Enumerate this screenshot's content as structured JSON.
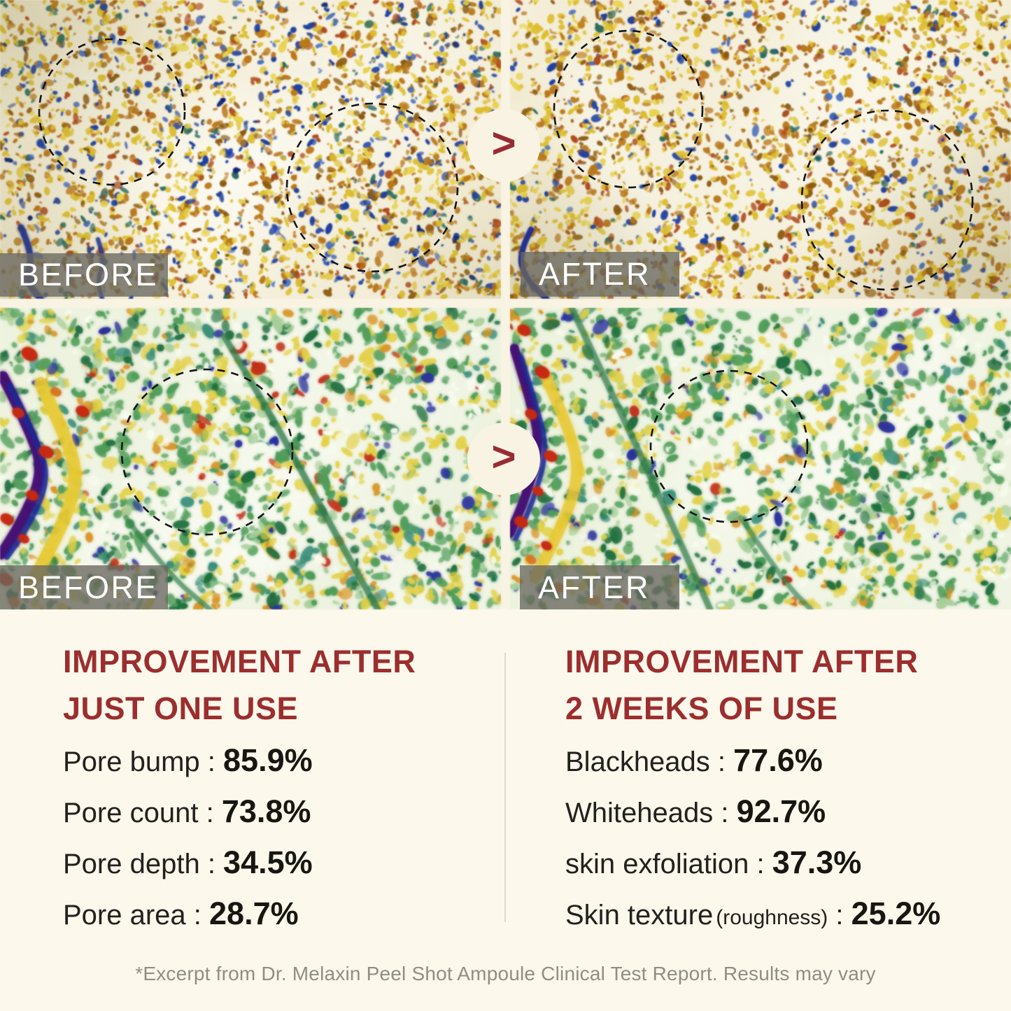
{
  "comparison": {
    "rows": [
      {
        "before_label": "BEFORE",
        "after_label": "AFTER"
      },
      {
        "before_label": "BEFORE",
        "after_label": "AFTER"
      }
    ],
    "arrow_glyph": ">"
  },
  "stats": {
    "separator": " : ",
    "left": {
      "heading_line1": "IMPROVEMENT AFTER",
      "heading_line2": "JUST ONE USE",
      "rows": [
        {
          "label": "Pore bump",
          "value": "85.9%"
        },
        {
          "label": "Pore count",
          "value": "73.8%"
        },
        {
          "label": "Pore depth",
          "value": "34.5%"
        },
        {
          "label": "Pore area",
          "value": "28.7%"
        }
      ]
    },
    "right": {
      "heading_line1": "IMPROVEMENT AFTER",
      "heading_line2": "2 WEEKS OF USE",
      "rows": [
        {
          "label": "Blackheads",
          "value": "77.6%"
        },
        {
          "label": "Whiteheads",
          "value": "92.7%"
        },
        {
          "label": "skin exfoliation",
          "value": "37.3%"
        },
        {
          "label": "Skin texture",
          "note": "(roughness)",
          "value": "25.2%"
        }
      ]
    }
  },
  "footer": {
    "text": "*Excerpt from Dr. Melaxin Peel Shot Ampoule Clinical Test Report. Results may vary"
  },
  "colors": {
    "accent_red": "#9c2e2e",
    "label_overlay": "rgba(105,103,95,0.78)",
    "cream": "#f8f3e3"
  }
}
